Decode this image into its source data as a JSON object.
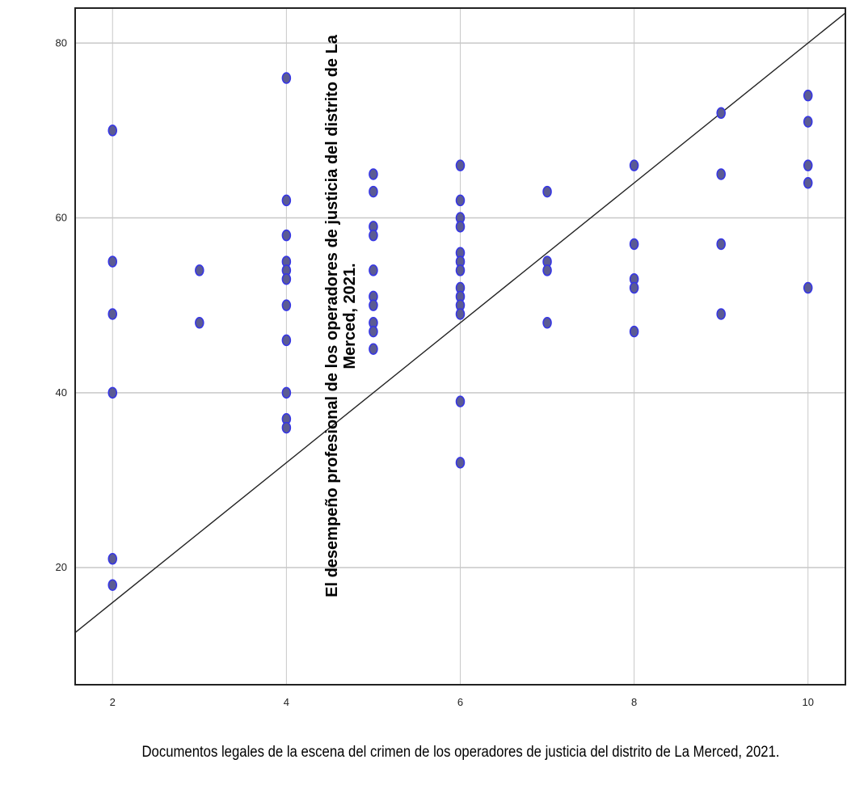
{
  "chart_data": {
    "type": "scatter",
    "title": "",
    "xlabel": "Documentos legales de la escena del crimen de los operadores de justicia del distrito de La Merced, 2021.",
    "ylabel": "El desempeño profesional de los operadores de justicia del distrito de La Merced, 2021.",
    "xlim": [
      1.57,
      10.43
    ],
    "ylim": [
      6.6,
      84.0
    ],
    "x_ticks": [
      "2",
      "4",
      "6",
      "8",
      "10"
    ],
    "x_tick_values": [
      2,
      4,
      6,
      8,
      10
    ],
    "y_ticks": [
      "20",
      "40",
      "60",
      "80"
    ],
    "y_tick_values": [
      20,
      40,
      60,
      80
    ],
    "grid": true,
    "legend": "none",
    "reference_line": {
      "slope": 8,
      "intercept": 0
    },
    "series": [
      {
        "points": [
          [
            2,
            70
          ],
          [
            2,
            55
          ],
          [
            2,
            49
          ],
          [
            2,
            40
          ],
          [
            2,
            21
          ],
          [
            2,
            18
          ],
          [
            3,
            54
          ],
          [
            3,
            48
          ],
          [
            4,
            76
          ],
          [
            4,
            62
          ],
          [
            4,
            58
          ],
          [
            4,
            55
          ],
          [
            4,
            54
          ],
          [
            4,
            53
          ],
          [
            4,
            50
          ],
          [
            4,
            46
          ],
          [
            4,
            40
          ],
          [
            4,
            37
          ],
          [
            4,
            36
          ],
          [
            5,
            65
          ],
          [
            5,
            63
          ],
          [
            5,
            59
          ],
          [
            5,
            58
          ],
          [
            5,
            54
          ],
          [
            5,
            51
          ],
          [
            5,
            50
          ],
          [
            5,
            48
          ],
          [
            5,
            47
          ],
          [
            5,
            45
          ],
          [
            6,
            66
          ],
          [
            6,
            62
          ],
          [
            6,
            60
          ],
          [
            6,
            59
          ],
          [
            6,
            56
          ],
          [
            6,
            55
          ],
          [
            6,
            54
          ],
          [
            6,
            52
          ],
          [
            6,
            51
          ],
          [
            6,
            50
          ],
          [
            6,
            49
          ],
          [
            6,
            39
          ],
          [
            6,
            32
          ],
          [
            7,
            63
          ],
          [
            7,
            55
          ],
          [
            7,
            54
          ],
          [
            7,
            48
          ],
          [
            8,
            66
          ],
          [
            8,
            57
          ],
          [
            8,
            53
          ],
          [
            8,
            52
          ],
          [
            8,
            47
          ],
          [
            9,
            72
          ],
          [
            9,
            65
          ],
          [
            9,
            57
          ],
          [
            9,
            49
          ],
          [
            10,
            74
          ],
          [
            10,
            71
          ],
          [
            10,
            66
          ],
          [
            10,
            64
          ],
          [
            10,
            52
          ]
        ]
      }
    ]
  },
  "colors": {
    "marker_fill": "#5B5B94",
    "marker_stroke": "#3535E6",
    "grid": "#C8C8C8",
    "frame": "#222222",
    "reference_line": "#222222"
  }
}
